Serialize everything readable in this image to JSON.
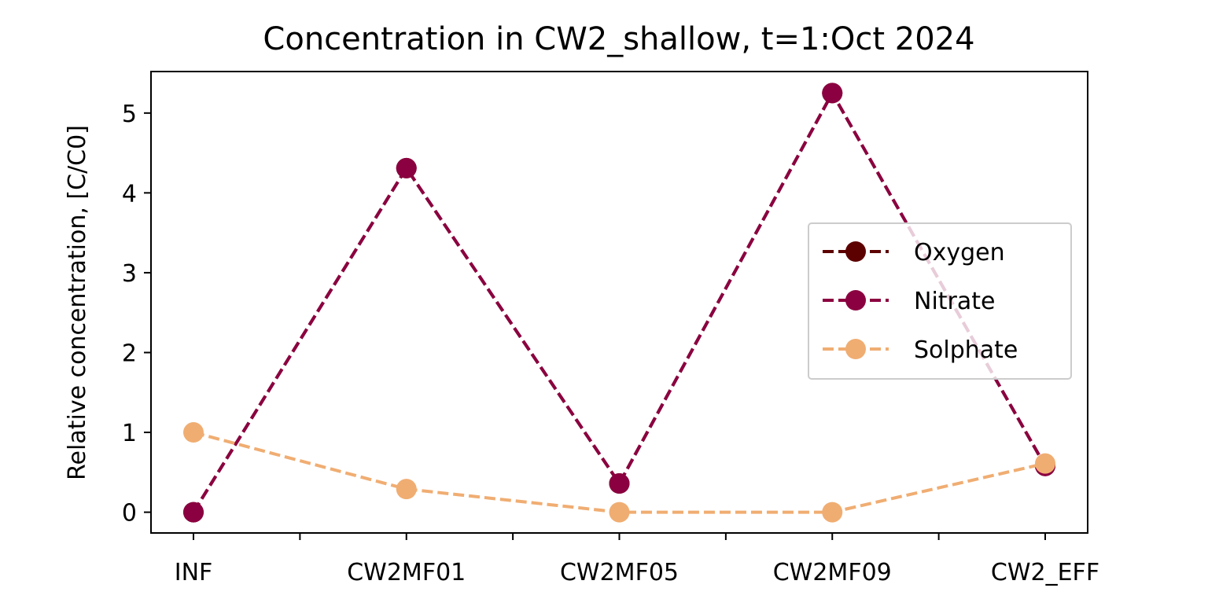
{
  "chart_data": {
    "type": "line",
    "title": "Concentration in CW2_shallow, t=1:Oct 2024",
    "xlabel": "",
    "ylabel": "Relative concentration, [C/C0]",
    "categories": [
      "INF",
      "CW2MF01",
      "CW2MF05",
      "CW2MF09",
      "CW2_EFF"
    ],
    "yticks": [
      0,
      1,
      2,
      3,
      4,
      5
    ],
    "ylim": [
      -0.26,
      5.52
    ],
    "grid": false,
    "legend_position": "center-right",
    "line_style": "dashed",
    "marker": "circle",
    "series": [
      {
        "name": "Oxygen",
        "color": "#5c0000",
        "values": [
          0.0,
          4.31,
          0.36,
          5.25,
          0.58
        ]
      },
      {
        "name": "Nitrate",
        "color": "#8b0040",
        "values": [
          0.0,
          4.31,
          0.36,
          5.25,
          0.58
        ]
      },
      {
        "name": "Solphate",
        "color": "#f0ad72",
        "values": [
          1.0,
          0.29,
          0.0,
          0.0,
          0.61
        ]
      }
    ]
  }
}
